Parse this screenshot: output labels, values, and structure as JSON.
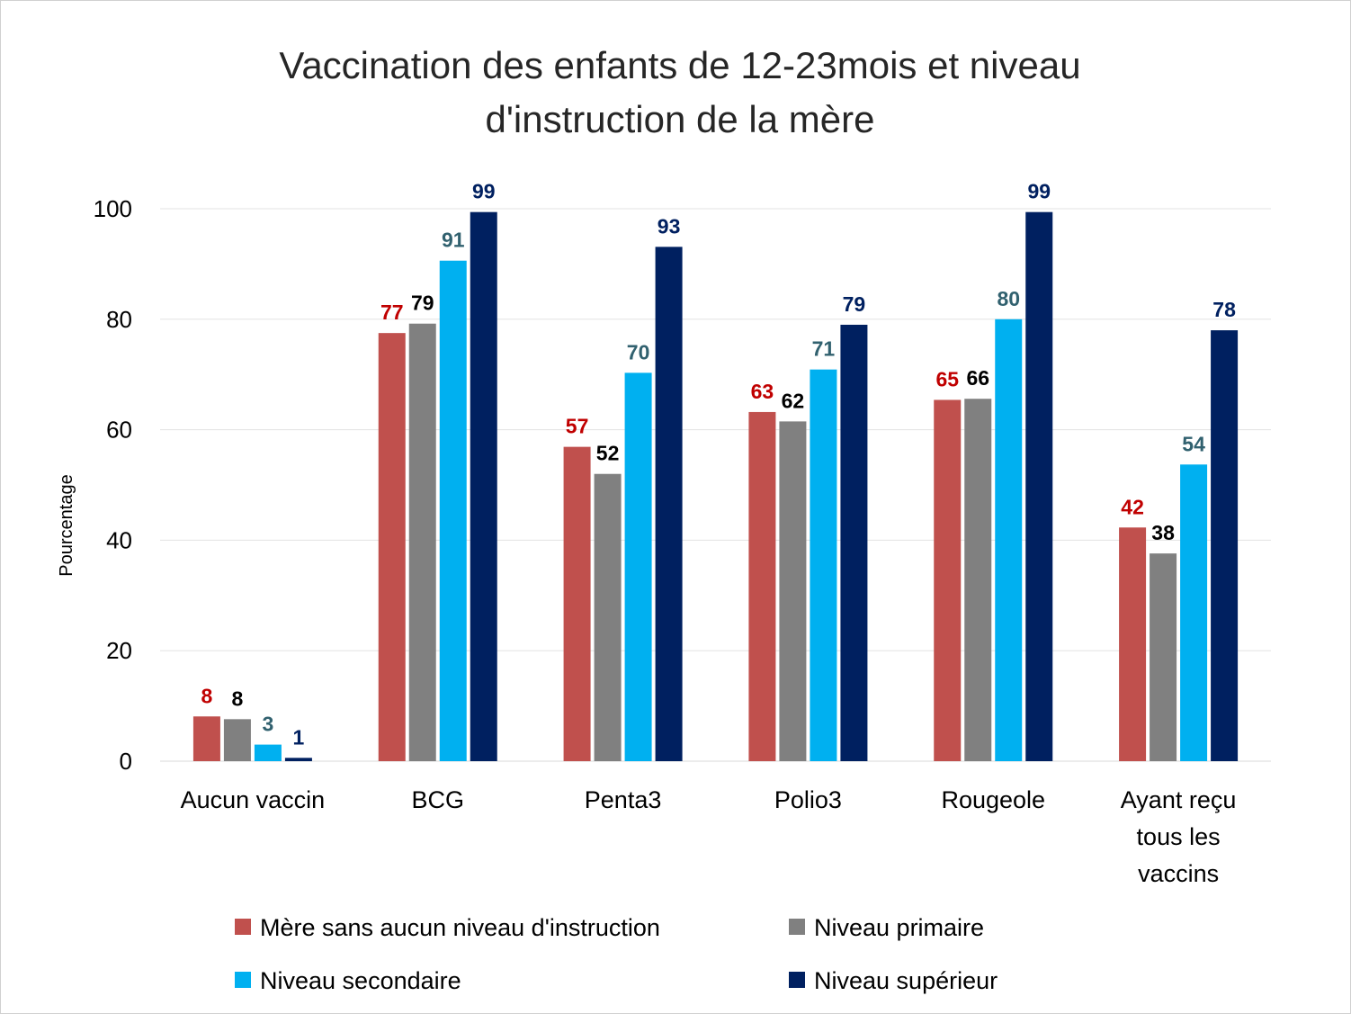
{
  "chart_data": {
    "type": "bar",
    "title_lines": [
      "Vaccination des enfants de 12-23mois  et niveau",
      "d'instruction de la mère"
    ],
    "xlabel": "",
    "ylabel": "Pourcentage",
    "ylim": [
      0,
      100
    ],
    "yticks": [
      0,
      20,
      40,
      60,
      80,
      100
    ],
    "grid": true,
    "legend_position": "bottom",
    "categories": [
      [
        "Aucun vaccin"
      ],
      [
        "BCG"
      ],
      [
        "Penta3"
      ],
      [
        "Polio3"
      ],
      [
        "Rougeole"
      ],
      [
        "Ayant reçu",
        "tous les",
        "vaccins"
      ]
    ],
    "series": [
      {
        "name": "Mère sans aucun niveau d'instruction",
        "color": "#c0504d",
        "label_color": "#c00000",
        "values": [
          8.1,
          77.5,
          56.9,
          63.2,
          65.4,
          42.3
        ],
        "labels": [
          "8",
          "77",
          "57",
          "63",
          "65",
          "42"
        ]
      },
      {
        "name": "Niveau primaire",
        "color": "#808080",
        "label_color": "#000000",
        "values": [
          7.6,
          79.2,
          52.0,
          61.5,
          65.6,
          37.6
        ],
        "labels": [
          "8",
          "79",
          "52",
          "62",
          "66",
          "38"
        ]
      },
      {
        "name": "Niveau secondaire",
        "color": "#00b0f0",
        "label_color": "#31616f",
        "values": [
          3.0,
          90.6,
          70.3,
          70.9,
          80.0,
          53.7
        ],
        "labels": [
          "3",
          "91",
          "70",
          "71",
          "80",
          "54"
        ]
      },
      {
        "name": "Niveau supérieur",
        "color": "#002060",
        "label_color": "#002060",
        "values": [
          0.6,
          99.4,
          93.1,
          79.0,
          99.4,
          78.0
        ],
        "labels": [
          "1",
          "99",
          "93",
          "79",
          "99",
          "78"
        ]
      }
    ]
  }
}
